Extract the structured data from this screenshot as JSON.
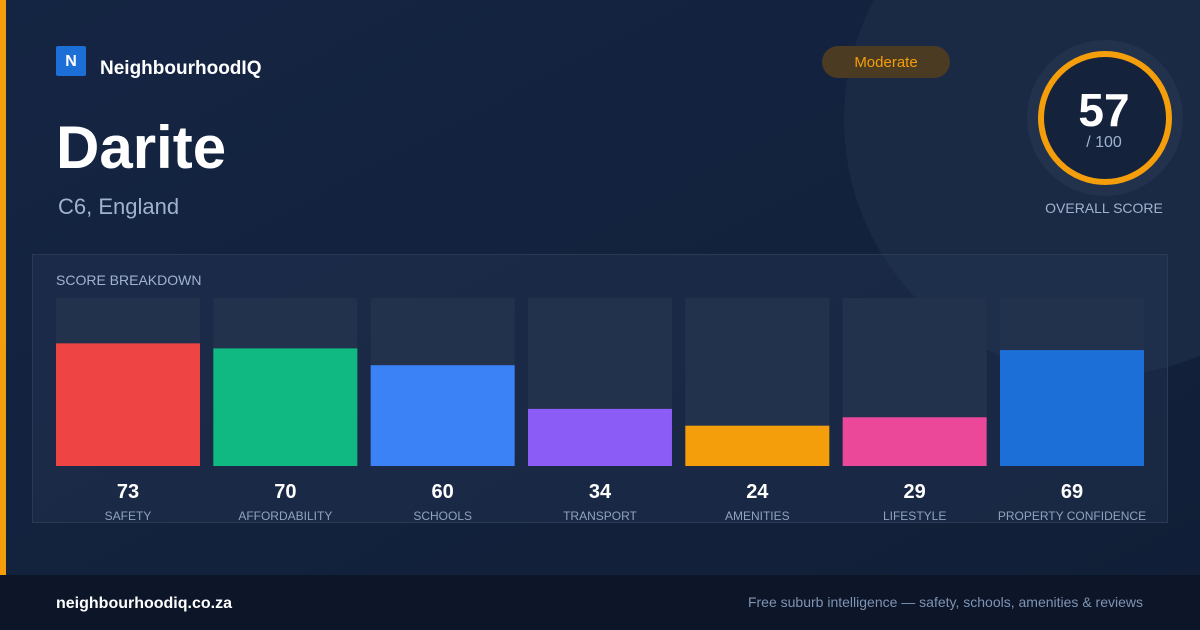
{
  "brand": {
    "logo": "N",
    "name": "NeighbourhoodIQ"
  },
  "badge": "Moderate",
  "place": {
    "name": "Darite",
    "region": "C6, England"
  },
  "score": {
    "value": 57,
    "scale_label": "/ 100",
    "caption": "OVERALL SCORE"
  },
  "chart_data": {
    "type": "bar",
    "title": "SCORE BREAKDOWN",
    "categories": [
      "SAFETY",
      "AFFORDABILITY",
      "SCHOOLS",
      "TRANSPORT",
      "AMENITIES",
      "LIFESTYLE",
      "PROPERTY CONFIDENCE"
    ],
    "values": [
      73,
      70,
      60,
      34,
      24,
      29,
      69
    ],
    "colors": [
      "#ef4444",
      "#10b981",
      "#3b82f6",
      "#8b5cf6",
      "#f59e0b",
      "#ec4899",
      "#1d6fd8"
    ],
    "ylim": [
      0,
      100
    ]
  },
  "footer": {
    "site": "neighbourhoodiq.co.za",
    "tagline": "Free suburb intelligence — safety, schools, amenities & reviews"
  }
}
